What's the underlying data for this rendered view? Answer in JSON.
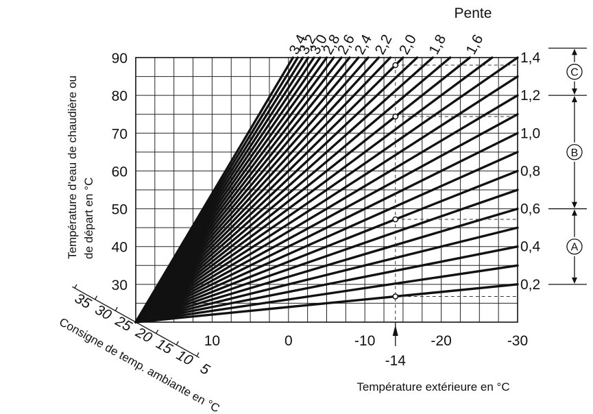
{
  "chart_data": {
    "type": "line",
    "title": "",
    "xlabel": "Température extérieure en °C",
    "ylabel_line1": "Température d'eau de chaudière ou",
    "ylabel_line2": "de départ en °C",
    "x_reversed": true,
    "xlim": [
      20,
      -30
    ],
    "ylim": [
      20,
      90
    ],
    "x_ticks": [
      "10",
      "0",
      "-10",
      "-20",
      "-30"
    ],
    "x_tick_values": [
      10,
      0,
      -10,
      -20,
      -30
    ],
    "y_ticks": [
      "30",
      "40",
      "50",
      "60",
      "70",
      "80",
      "90"
    ],
    "y_tick_values": [
      30,
      40,
      50,
      60,
      70,
      80,
      90
    ],
    "grid": true,
    "grid_step_x": 2.5,
    "grid_step_y": 5,
    "origin": [
      20,
      20
    ],
    "slope_title": "Pente",
    "slopes_top": [
      {
        "label": "3,4",
        "value": 3.4
      },
      {
        "label": "3,2",
        "value": 3.2
      },
      {
        "label": "3,0",
        "value": 3.0
      },
      {
        "label": "2,8",
        "value": 2.8
      },
      {
        "label": "2,6",
        "value": 2.6
      },
      {
        "label": "2,4",
        "value": 2.4
      },
      {
        "label": "2,2",
        "value": 2.2
      },
      {
        "label": "2,0",
        "value": 2.0
      },
      {
        "label": "1,8",
        "value": 1.8
      },
      {
        "label": "1,6",
        "value": 1.6
      }
    ],
    "slopes_right": [
      {
        "label": "1,4",
        "value": 1.4
      },
      {
        "label": "1,2",
        "value": 1.2
      },
      {
        "label": "1,0",
        "value": 1.0
      },
      {
        "label": "0,8",
        "value": 0.8
      },
      {
        "label": "0,6",
        "value": 0.6
      },
      {
        "label": "0,4",
        "value": 0.4
      },
      {
        "label": "0,2",
        "value": 0.2
      }
    ],
    "intermediate_slopes": [
      3.3,
      3.1,
      2.9,
      2.7,
      2.5,
      2.3,
      2.1,
      1.9,
      1.7,
      1.5,
      1.3,
      1.1,
      0.9,
      0.7,
      0.5,
      0.3
    ],
    "reference": {
      "x_label": "-14",
      "x_value": -14,
      "highlighted_slopes": [
        2.0,
        1.6,
        0.8,
        0.2
      ]
    },
    "ranges": [
      {
        "label": "A",
        "from": 0.2,
        "to": 0.6
      },
      {
        "label": "B",
        "from": 0.6,
        "to": 1.2
      },
      {
        "label": "C",
        "from": 1.2,
        "to": 1.4
      }
    ],
    "room_setpoint_axis": {
      "label": "Consigne de temp. ambiante en °C",
      "ticks": [
        "35",
        "30",
        "25",
        "20",
        "15",
        "10",
        "5"
      ],
      "tick_values": [
        35,
        30,
        25,
        20,
        15,
        10,
        5
      ]
    }
  }
}
